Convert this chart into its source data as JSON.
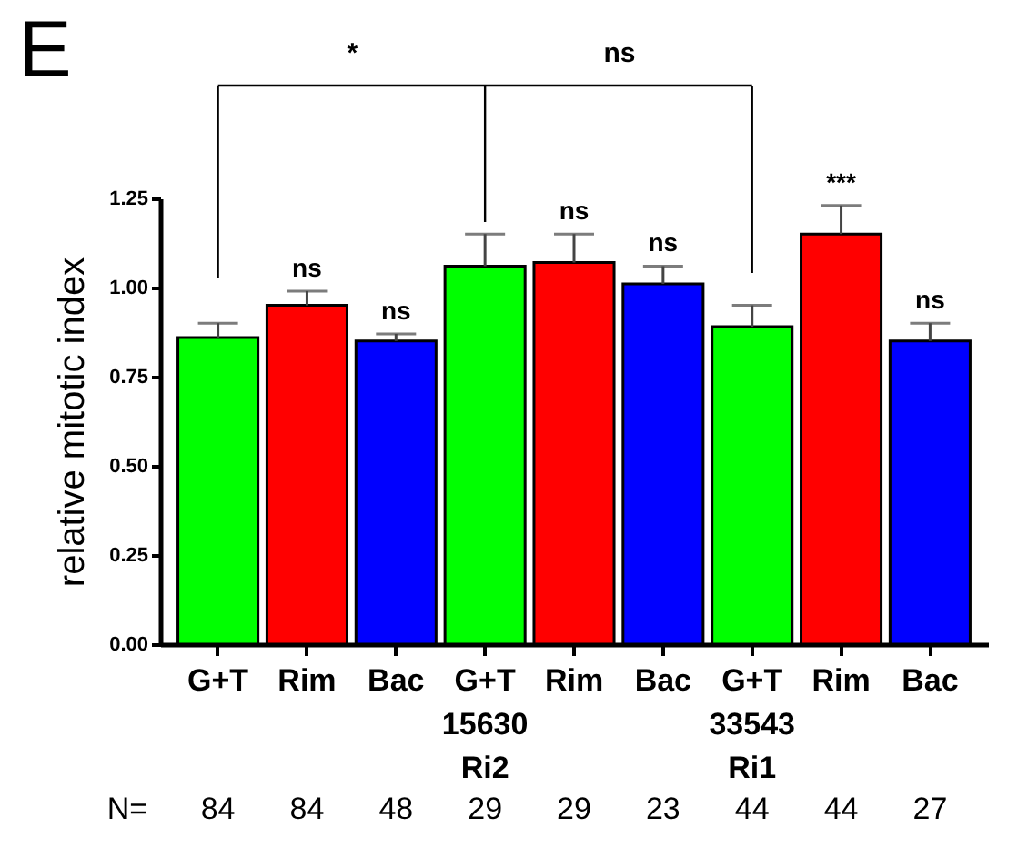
{
  "chart_data": {
    "type": "bar",
    "title": "E",
    "ylabel": "relative mitotic index",
    "categories": [
      "G+T",
      "Rim",
      "Bac",
      "G+T\n15630\nRi2",
      "Rim",
      "Bac",
      "G+T\n33543\nRi1",
      "Rim",
      "Bac"
    ],
    "values": [
      0.86,
      0.95,
      0.85,
      1.06,
      1.07,
      1.01,
      0.89,
      1.15,
      0.85
    ],
    "colors": [
      "#00ff00",
      "#ff0000",
      "#0000ff",
      "#00ff00",
      "#ff0000",
      "#0000ff",
      "#00ff00",
      "#ff0000",
      "#0000ff"
    ],
    "errors": [
      [
        0.86,
        0.9
      ],
      [
        0.95,
        0.99
      ],
      [
        0.85,
        0.87
      ],
      [
        1.06,
        1.15
      ],
      [
        1.07,
        1.15
      ],
      [
        1.01,
        1.06
      ],
      [
        0.89,
        0.95
      ],
      [
        1.15,
        1.23
      ],
      [
        0.85,
        0.9
      ]
    ],
    "ylim": [
      0,
      1.25
    ],
    "yticks": [
      {
        "value": 0,
        "label": "0.00"
      },
      {
        "value": 0.25,
        "label": "0.25"
      },
      {
        "value": 0.5,
        "label": "0.50"
      },
      {
        "value": 0.75,
        "label": "0.75"
      },
      {
        "value": 1,
        "label": "1.00"
      },
      {
        "value": 1.25,
        "label": "1.25"
      }
    ],
    "annotations": [
      "ns",
      "ns",
      "ns",
      "ns",
      "***",
      "ns",
      "*",
      "ns",
      "N=",
      "84",
      "84",
      "48",
      "29",
      "29",
      "23",
      "44",
      "44",
      "27"
    ]
  }
}
